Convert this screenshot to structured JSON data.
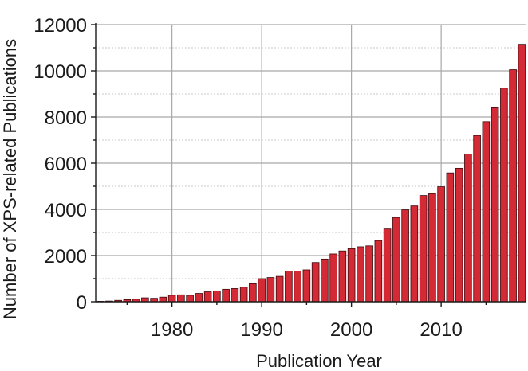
{
  "chart_data": {
    "type": "bar",
    "xlabel": "Publication Year",
    "ylabel": "Number of XPS-related Publications",
    "xlim": [
      1971.5,
      2019.5
    ],
    "ylim": [
      0,
      12000
    ],
    "x_ticks": [
      1980,
      1990,
      2000,
      2010
    ],
    "y_ticks": [
      0,
      2000,
      4000,
      6000,
      8000,
      10000,
      12000
    ],
    "grid": true,
    "bar_color": "#d42a35",
    "x": [
      1972,
      1973,
      1974,
      1975,
      1976,
      1977,
      1978,
      1979,
      1980,
      1981,
      1982,
      1983,
      1984,
      1985,
      1986,
      1987,
      1988,
      1989,
      1990,
      1991,
      1992,
      1993,
      1994,
      1995,
      1996,
      1997,
      1998,
      1999,
      2000,
      2001,
      2002,
      2003,
      2004,
      2005,
      2006,
      2007,
      2008,
      2009,
      2010,
      2011,
      2012,
      2013,
      2014,
      2015,
      2016,
      2017,
      2018,
      2019
    ],
    "values": [
      20,
      30,
      60,
      90,
      110,
      170,
      150,
      200,
      280,
      300,
      280,
      360,
      430,
      470,
      540,
      570,
      630,
      780,
      1000,
      1050,
      1100,
      1330,
      1330,
      1380,
      1700,
      1850,
      2070,
      2200,
      2300,
      2380,
      2420,
      2650,
      3150,
      3650,
      3980,
      4150,
      4600,
      4680,
      4980,
      5580,
      5780,
      6400,
      7200,
      7800,
      8400,
      9250,
      10050,
      11150
    ]
  }
}
